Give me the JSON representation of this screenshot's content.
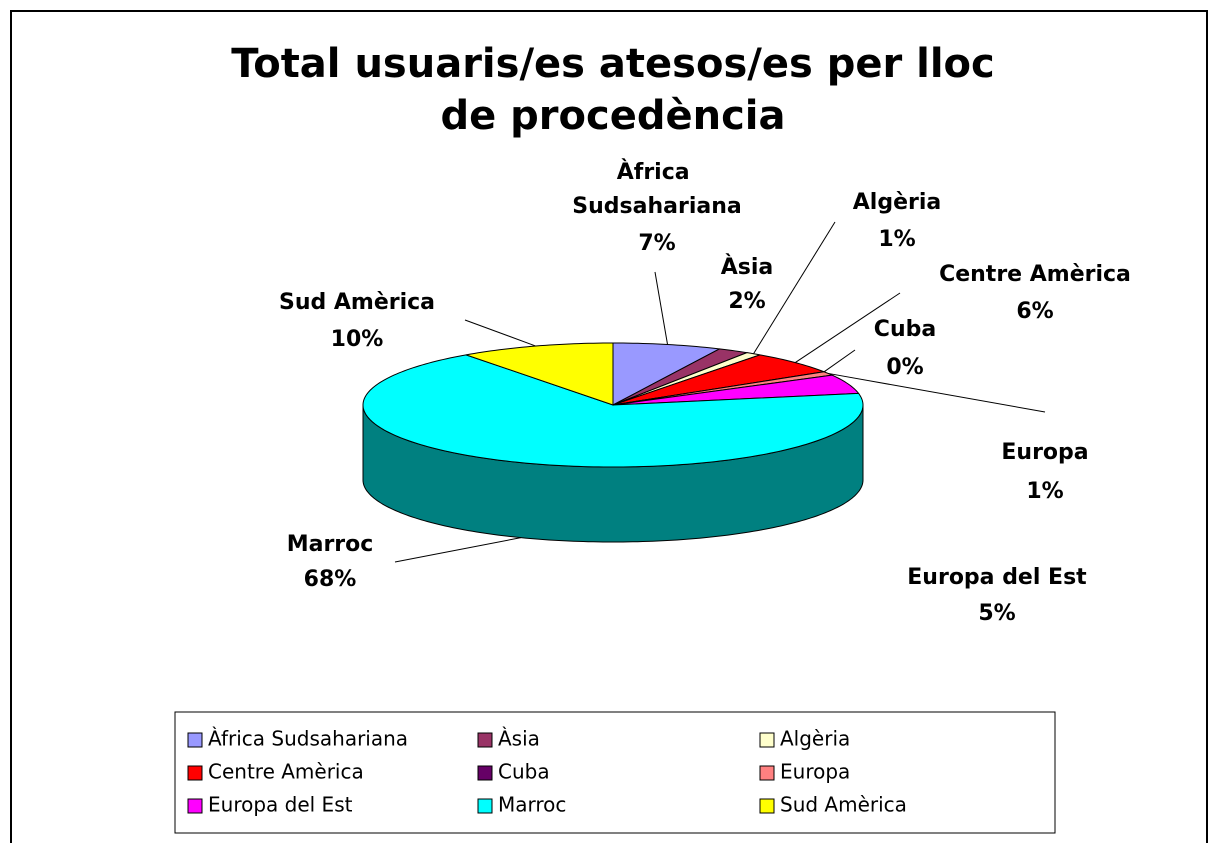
{
  "chart_data": {
    "type": "pie",
    "title": "Total usuaris/es atesos/es per lloc de procedència",
    "categories": [
      "Àfrica Sudsahariana",
      "Àsia",
      "Algèria",
      "Centre Amèrica",
      "Cuba",
      "Europa",
      "Europa del Est",
      "Marroc",
      "Sud Amèrica"
    ],
    "values": [
      7,
      2,
      1,
      6,
      0,
      1,
      5,
      68,
      10
    ],
    "value_labels": [
      "7%",
      "2%",
      "1%",
      "6%",
      "0%",
      "1%",
      "5%",
      "68%",
      "10%"
    ],
    "colors": [
      "#9999ff",
      "#993366",
      "#ffffcc",
      "#ff0000",
      "#660066",
      "#ff8080",
      "#ff00ff",
      "#00ffff",
      "#ffff00"
    ],
    "legend": "bottom"
  }
}
